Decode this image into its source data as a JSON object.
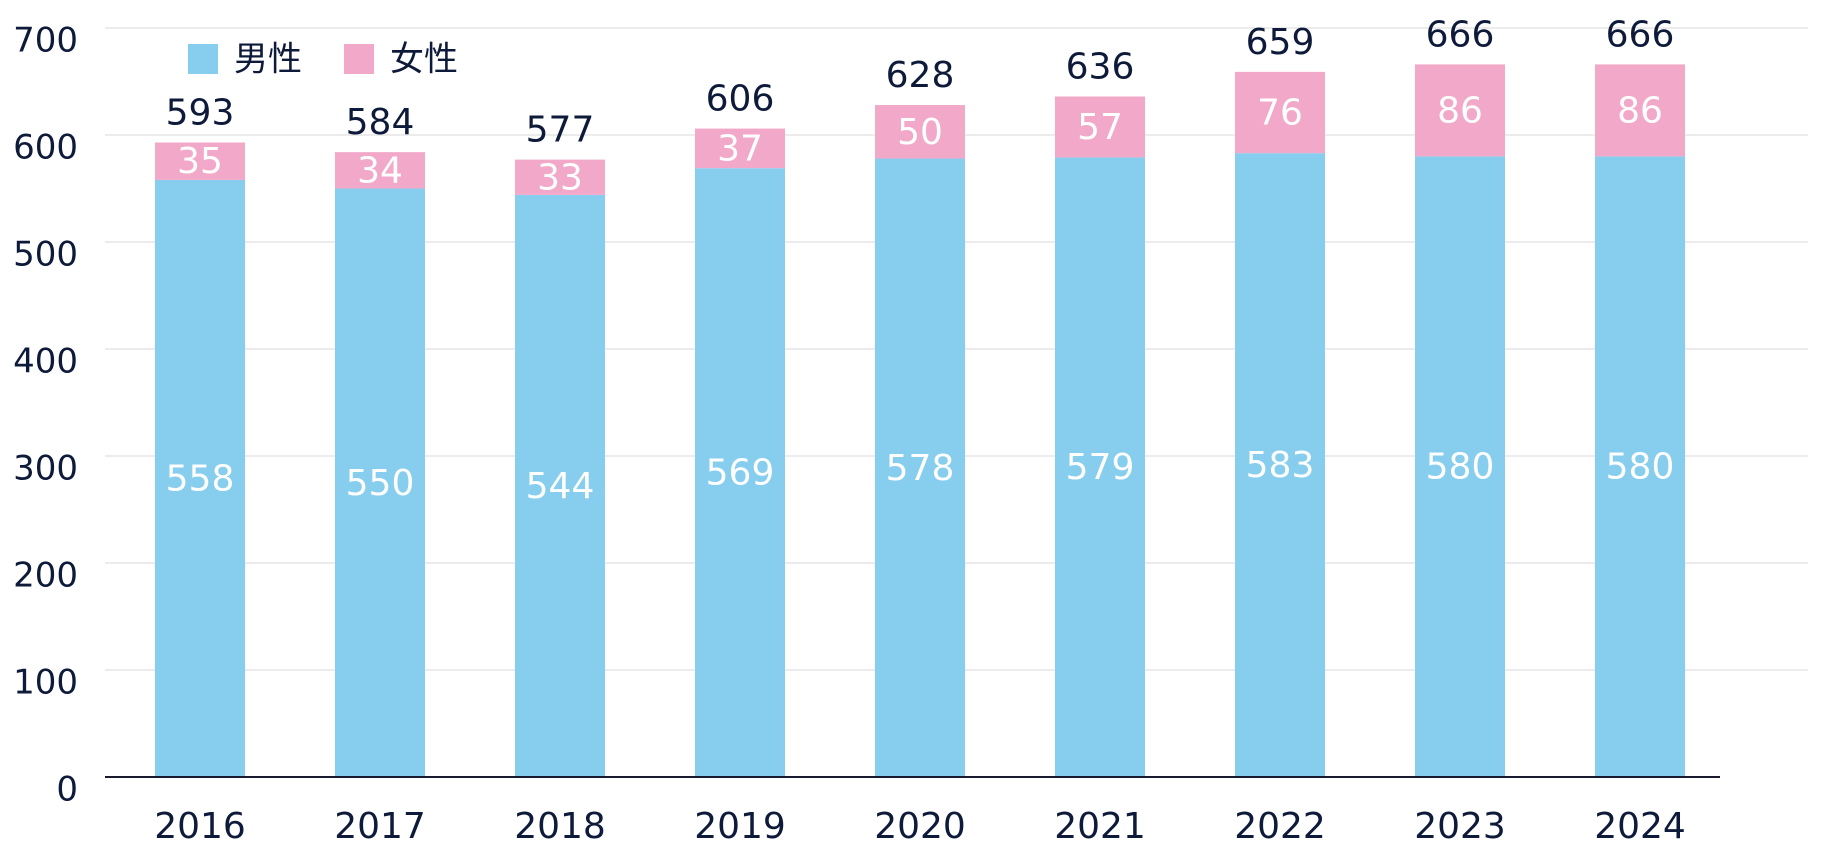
{
  "chart_data": {
    "type": "bar",
    "stacked": true,
    "categories": [
      "2016",
      "2017",
      "2018",
      "2019",
      "2020",
      "2021",
      "2022",
      "2023",
      "2024"
    ],
    "series": [
      {
        "name": "男性",
        "color": "#87CEEE",
        "values": [
          558,
          550,
          544,
          569,
          578,
          579,
          583,
          580,
          580
        ]
      },
      {
        "name": "女性",
        "color": "#F2A9C9",
        "values": [
          35,
          34,
          33,
          37,
          50,
          57,
          76,
          86,
          86
        ]
      }
    ],
    "totals": [
      593,
      584,
      577,
      606,
      628,
      636,
      659,
      666,
      666
    ],
    "ylim": [
      0,
      700
    ],
    "yticks": [
      0,
      100,
      200,
      300,
      400,
      500,
      600,
      700
    ],
    "grid": true,
    "legend": "top-left"
  }
}
